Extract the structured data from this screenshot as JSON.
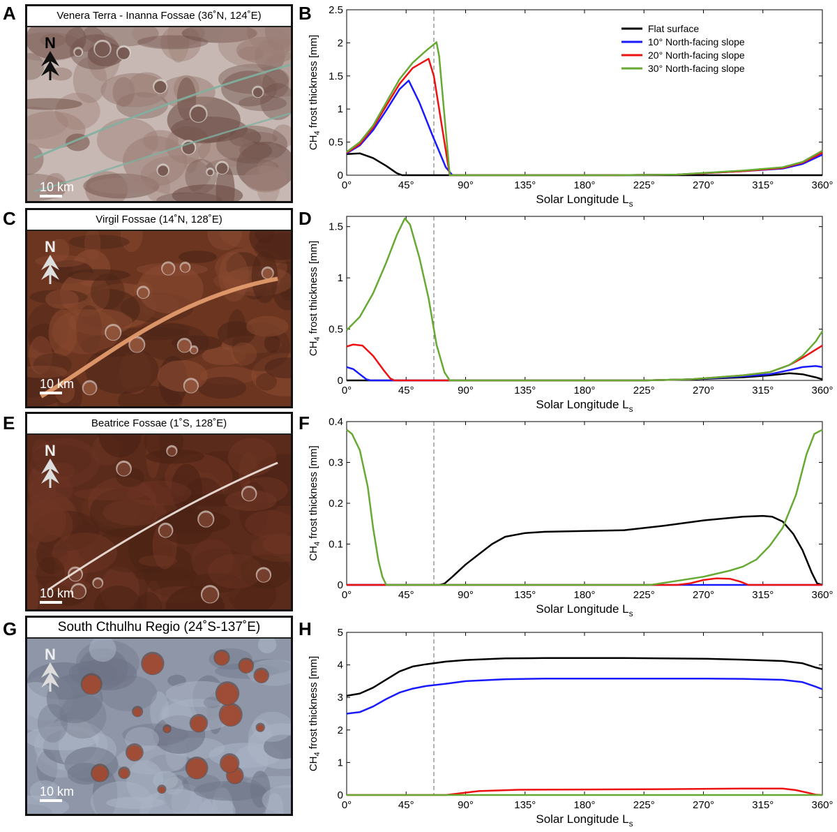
{
  "panel_letters": [
    "A",
    "B",
    "C",
    "D",
    "E",
    "F",
    "G",
    "H"
  ],
  "images": [
    {
      "caption": "Venera Terra - Inanna Fossae (36˚N, 124˚E)",
      "north_label": "N",
      "scale_label": "10 km",
      "palette": [
        "#c7b8b3",
        "#9c7f76",
        "#6f5048",
        "#dcd5d0"
      ],
      "accent": "#7fb0a0"
    },
    {
      "caption": "Virgil Fossae (14˚N, 128˚E)",
      "north_label": "N",
      "scale_label": "10 km",
      "palette": [
        "#6b3520",
        "#4b2417",
        "#8a4a30",
        "#d8c8c0"
      ],
      "accent": "#e8a070"
    },
    {
      "caption": "Beatrice Fossae (1˚S, 128˚E)",
      "north_label": "N",
      "scale_label": "10 km",
      "palette": [
        "#5a2a1a",
        "#4a2214",
        "#6e3524",
        "#e0d0c8"
      ],
      "accent": "#f2e8e0"
    },
    {
      "caption": "South Cthulhu Regio (24˚S-137˚E)",
      "north_label": "N",
      "scale_label": "10 km",
      "palette": [
        "#8e96a8",
        "#6e7486",
        "#aab4c4",
        "#5a4a48"
      ],
      "accent": "#a54a32"
    }
  ],
  "legend": [
    {
      "label": "Flat surface",
      "color": "#000000"
    },
    {
      "label": "10° North-facing slope",
      "color": "#1a1aff"
    },
    {
      "label": "20° North-facing slope",
      "color": "#ee1111"
    },
    {
      "label": "30° North-facing slope",
      "color": "#66aa33"
    }
  ],
  "chart_data": [
    {
      "type": "line",
      "panel": "B",
      "xlabel": "Solar Longitude L",
      "xlabel_sub": "s",
      "ylabel": "CH4 frost thickness [mm]",
      "xlim": [
        0,
        360
      ],
      "ylim": [
        0,
        2.5
      ],
      "xticks": [
        0,
        45,
        90,
        135,
        180,
        225,
        270,
        315,
        360
      ],
      "xtick_labels": [
        "0°",
        "45°",
        "90°",
        "135°",
        "180°",
        "225°",
        "270°",
        "315°",
        "360°"
      ],
      "yticks": [
        0,
        0.5,
        1,
        1.5,
        2,
        2.5
      ],
      "ytick_labels": [
        "0",
        "0.5",
        "1",
        "1.5",
        "2",
        "2.5"
      ],
      "vline_x": 66,
      "legend_position": "top-right",
      "series": [
        {
          "name": "Flat surface",
          "color": "#000000",
          "x": [
            0,
            10,
            20,
            30,
            38,
            42,
            80,
            200,
            300,
            360
          ],
          "y": [
            0.32,
            0.33,
            0.26,
            0.14,
            0.03,
            0,
            0,
            0,
            0,
            0
          ]
        },
        {
          "name": "10° North-facing slope",
          "color": "#1a1aff",
          "x": [
            0,
            10,
            20,
            30,
            40,
            47,
            55,
            65,
            75,
            80,
            90,
            150,
            200,
            250,
            300,
            330,
            345,
            360
          ],
          "y": [
            0.33,
            0.45,
            0.68,
            0.98,
            1.3,
            1.43,
            1.1,
            0.6,
            0.12,
            0,
            0,
            0,
            0,
            0.01,
            0.06,
            0.1,
            0.17,
            0.31
          ]
        },
        {
          "name": "20° North-facing slope",
          "color": "#ee1111",
          "x": [
            0,
            10,
            20,
            30,
            40,
            50,
            62,
            66,
            72,
            78,
            90,
            150,
            200,
            250,
            300,
            330,
            345,
            360
          ],
          "y": [
            0.34,
            0.47,
            0.72,
            1.05,
            1.38,
            1.62,
            1.76,
            1.5,
            0.75,
            0,
            0,
            0,
            0,
            0.01,
            0.06,
            0.11,
            0.19,
            0.34
          ]
        },
        {
          "name": "30° North-facing slope",
          "color": "#66aa33",
          "x": [
            0,
            10,
            20,
            30,
            40,
            50,
            60,
            68,
            70,
            74,
            78,
            90,
            150,
            200,
            250,
            300,
            330,
            345,
            360
          ],
          "y": [
            0.35,
            0.5,
            0.75,
            1.1,
            1.45,
            1.7,
            1.88,
            2.01,
            1.8,
            0.9,
            0,
            0,
            0,
            0,
            0.01,
            0.07,
            0.12,
            0.2,
            0.37
          ]
        }
      ]
    },
    {
      "type": "line",
      "panel": "D",
      "xlabel": "Solar Longitude L",
      "xlabel_sub": "s",
      "ylabel": "CH4 frost thickness [mm]",
      "xlim": [
        0,
        360
      ],
      "ylim": [
        0,
        1.6
      ],
      "xticks": [
        0,
        45,
        90,
        135,
        180,
        225,
        270,
        315,
        360
      ],
      "xtick_labels": [
        "0°",
        "45°",
        "90°",
        "135°",
        "180°",
        "225°",
        "270°",
        "315°",
        "360°"
      ],
      "yticks": [
        0,
        0.5,
        1,
        1.5
      ],
      "ytick_labels": [
        "0",
        "0.5",
        "1",
        "1.5"
      ],
      "vline_x": 66,
      "series": [
        {
          "name": "Flat surface",
          "color": "#000000",
          "x": [
            0,
            100,
            225,
            260,
            300,
            320,
            335,
            345,
            355,
            360
          ],
          "y": [
            0,
            0,
            0,
            0.01,
            0.03,
            0.05,
            0.07,
            0.06,
            0.03,
            0.01
          ]
        },
        {
          "name": "10° North-facing slope",
          "color": "#1a1aff",
          "x": [
            0,
            5,
            10,
            15,
            18,
            100,
            225,
            260,
            300,
            320,
            335,
            345,
            355,
            360
          ],
          "y": [
            0.13,
            0.11,
            0.06,
            0.01,
            0,
            0,
            0,
            0.01,
            0.04,
            0.06,
            0.1,
            0.13,
            0.14,
            0.13
          ]
        },
        {
          "name": "20° North-facing slope",
          "color": "#ee1111",
          "x": [
            0,
            5,
            12,
            20,
            28,
            33,
            36,
            100,
            225,
            260,
            300,
            320,
            335,
            345,
            355,
            360
          ],
          "y": [
            0.33,
            0.35,
            0.34,
            0.24,
            0.1,
            0.02,
            0,
            0,
            0,
            0.01,
            0.05,
            0.08,
            0.15,
            0.22,
            0.3,
            0.34
          ]
        },
        {
          "name": "30° North-facing slope",
          "color": "#66aa33",
          "x": [
            0,
            10,
            20,
            30,
            38,
            44,
            48,
            55,
            62,
            68,
            74,
            78,
            100,
            225,
            260,
            300,
            320,
            335,
            345,
            355,
            360
          ],
          "y": [
            0.49,
            0.62,
            0.85,
            1.15,
            1.42,
            1.58,
            1.52,
            1.2,
            0.8,
            0.35,
            0.08,
            0,
            0,
            0,
            0.01,
            0.05,
            0.08,
            0.15,
            0.24,
            0.38,
            0.48
          ]
        }
      ]
    },
    {
      "type": "line",
      "panel": "F",
      "xlabel": "Solar Longitude L",
      "xlabel_sub": "s",
      "ylabel": "CH4 frost thickness [mm]",
      "xlim": [
        0,
        360
      ],
      "ylim": [
        0,
        0.4
      ],
      "xticks": [
        0,
        45,
        90,
        135,
        180,
        225,
        270,
        315,
        360
      ],
      "xtick_labels": [
        "0°",
        "45°",
        "90°",
        "135°",
        "180°",
        "225°",
        "270°",
        "315°",
        "360°"
      ],
      "yticks": [
        0,
        0.1,
        0.2,
        0.3,
        0.4
      ],
      "ytick_labels": [
        "0",
        "0.1",
        "0.2",
        "0.3",
        "0.4"
      ],
      "vline_x": 66,
      "series": [
        {
          "name": "Flat surface",
          "color": "#000000",
          "x": [
            0,
            70,
            74,
            80,
            90,
            100,
            110,
            120,
            135,
            150,
            180,
            210,
            240,
            270,
            300,
            315,
            322,
            330,
            338,
            345,
            352,
            356,
            360
          ],
          "y": [
            0,
            0,
            0.003,
            0.02,
            0.05,
            0.075,
            0.1,
            0.118,
            0.127,
            0.13,
            0.132,
            0.134,
            0.145,
            0.158,
            0.167,
            0.169,
            0.167,
            0.155,
            0.125,
            0.085,
            0.03,
            0.004,
            0
          ]
        },
        {
          "name": "10° North-facing slope",
          "color": "#1a1aff",
          "x": [
            0,
            360
          ],
          "y": [
            0,
            0
          ]
        },
        {
          "name": "20° North-facing slope",
          "color": "#ee1111",
          "x": [
            0,
            250,
            260,
            270,
            280,
            290,
            298,
            304,
            360
          ],
          "y": [
            0,
            0,
            0.004,
            0.012,
            0.016,
            0.015,
            0.008,
            0,
            0
          ]
        },
        {
          "name": "30° North-facing slope",
          "color": "#66aa33",
          "x": [
            0,
            4,
            10,
            16,
            20,
            24,
            27,
            30,
            230,
            250,
            270,
            290,
            300,
            310,
            320,
            330,
            340,
            348,
            354,
            360
          ],
          "y": [
            0.38,
            0.37,
            0.33,
            0.24,
            0.14,
            0.06,
            0.02,
            0,
            0,
            0.01,
            0.02,
            0.035,
            0.045,
            0.062,
            0.095,
            0.14,
            0.22,
            0.32,
            0.37,
            0.38
          ]
        }
      ]
    },
    {
      "type": "line",
      "panel": "H",
      "xlabel": "Solar Longitude L",
      "xlabel_sub": "s",
      "ylabel": "CH4 frost thickness [mm]",
      "xlim": [
        0,
        360
      ],
      "ylim": [
        0,
        5
      ],
      "xticks": [
        0,
        45,
        90,
        135,
        180,
        225,
        270,
        315,
        360
      ],
      "xtick_labels": [
        "0°",
        "45°",
        "90°",
        "135°",
        "180°",
        "225°",
        "270°",
        "315°",
        "360°"
      ],
      "yticks": [
        0,
        1,
        2,
        3,
        4,
        5
      ],
      "ytick_labels": [
        "0",
        "1",
        "2",
        "3",
        "4",
        "5"
      ],
      "vline_x": 66,
      "series": [
        {
          "name": "Flat surface",
          "color": "#000000",
          "x": [
            0,
            10,
            20,
            30,
            40,
            50,
            60,
            75,
            90,
            120,
            150,
            180,
            210,
            240,
            270,
            300,
            330,
            345,
            355,
            360
          ],
          "y": [
            3.05,
            3.12,
            3.3,
            3.55,
            3.8,
            3.95,
            4.02,
            4.1,
            4.15,
            4.2,
            4.21,
            4.21,
            4.21,
            4.2,
            4.19,
            4.16,
            4.12,
            4.05,
            3.92,
            3.87
          ]
        },
        {
          "name": "10° North-facing slope",
          "color": "#1a1aff",
          "x": [
            0,
            10,
            20,
            30,
            40,
            50,
            60,
            75,
            90,
            120,
            150,
            180,
            210,
            240,
            270,
            300,
            330,
            345,
            355,
            360
          ],
          "y": [
            2.5,
            2.55,
            2.72,
            2.95,
            3.15,
            3.27,
            3.35,
            3.42,
            3.5,
            3.56,
            3.58,
            3.58,
            3.58,
            3.58,
            3.58,
            3.57,
            3.54,
            3.47,
            3.33,
            3.25
          ]
        },
        {
          "name": "20° North-facing slope",
          "color": "#ee1111",
          "x": [
            0,
            75,
            85,
            100,
            130,
            180,
            240,
            300,
            330,
            340,
            350,
            355,
            360
          ],
          "y": [
            0,
            0,
            0.05,
            0.12,
            0.16,
            0.17,
            0.18,
            0.2,
            0.2,
            0.15,
            0.06,
            0.01,
            0
          ]
        },
        {
          "name": "30° North-facing slope",
          "color": "#66aa33",
          "x": [
            0,
            360
          ],
          "y": [
            0,
            0
          ]
        }
      ]
    }
  ]
}
